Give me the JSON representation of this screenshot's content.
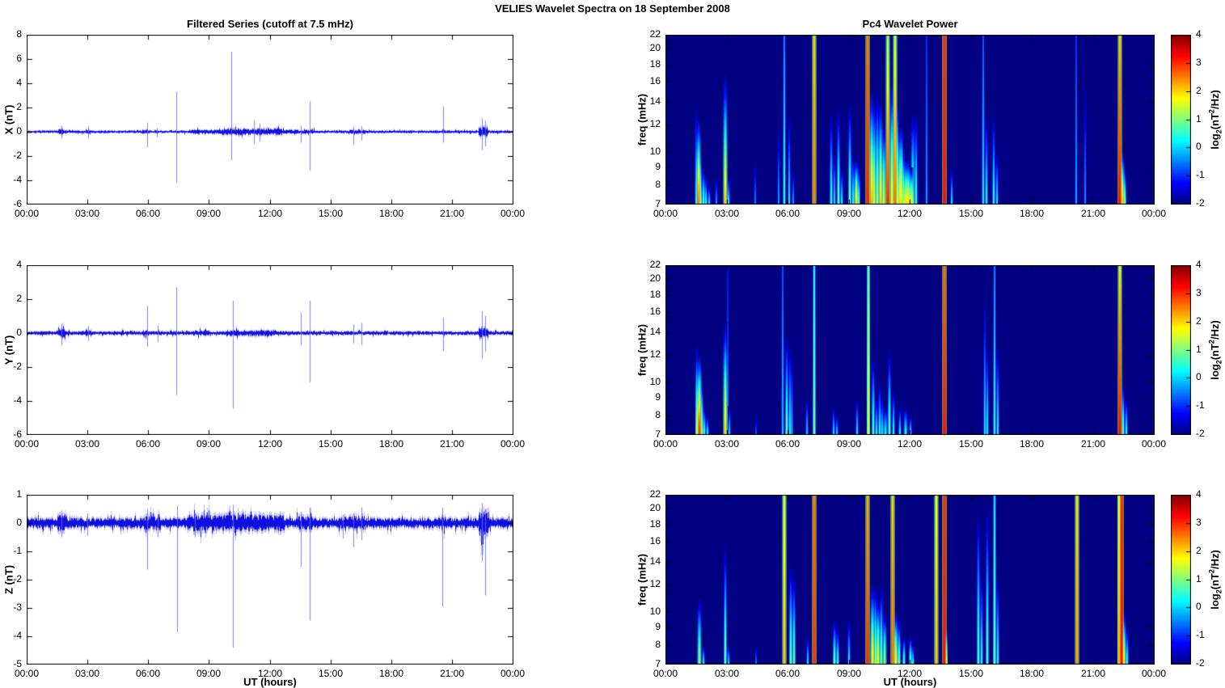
{
  "figure": {
    "title": "VELIES Wavelet Spectra on 18 September 2008"
  },
  "left_column": {
    "title": "Filtered Series (cutoff at 7.5 mHz)",
    "xlabel": "UT (hours)"
  },
  "right_column": {
    "title": "Pc4 Wavelet Power",
    "xlabel": "UT (hours)",
    "ylabel": "freq (mHz)"
  },
  "xaxis": {
    "tick_hours": [
      0,
      3,
      6,
      9,
      12,
      15,
      18,
      21,
      24
    ],
    "tick_labels": [
      "00:00",
      "03:00",
      "06:00",
      "09:00",
      "12:00",
      "15:00",
      "18:00",
      "21:00",
      "00:00"
    ]
  },
  "colorbar": {
    "ticks": [
      4,
      3,
      2,
      1,
      0,
      -1,
      -2
    ],
    "range": [
      -2,
      4
    ],
    "label_text": "log2(nT^2/Hz)",
    "label_pre": "log",
    "label_sub": "2",
    "label_mid": "(nT",
    "label_sup": "2",
    "label_post": "/Hz)"
  },
  "colors": {
    "line": "#0f0fe0",
    "spike": "#6a6afa",
    "wisp": "#7878f5",
    "background": "#ffffff",
    "heatmap_min": "#000080",
    "frame": "#000000"
  },
  "chart_data": [
    {
      "id": "series-x",
      "type": "line",
      "ylabel": "X (nT)",
      "ylim": [
        -6,
        8
      ],
      "yticks": [
        8,
        6,
        4,
        2,
        0,
        -2,
        -4,
        -6
      ],
      "x_range_hours": [
        0,
        24
      ],
      "noise_base": 0.08,
      "noise_segments": [
        [
          1.55,
          1.85,
          0.18
        ],
        [
          2.9,
          3.15,
          0.14
        ],
        [
          5.7,
          6.1,
          0.12
        ],
        [
          8.0,
          9.6,
          0.13
        ],
        [
          9.6,
          12.6,
          0.2
        ],
        [
          12.6,
          14.2,
          0.12
        ],
        [
          15.9,
          16.7,
          0.12
        ],
        [
          22.3,
          22.75,
          0.3
        ]
      ],
      "spikes": [
        {
          "t": 1.72,
          "hi": 0.5,
          "lo": -0.55
        },
        {
          "t": 3.02,
          "hi": 0.45,
          "lo": -0.5
        },
        {
          "t": 5.93,
          "hi": 0.75,
          "lo": -1.3
        },
        {
          "t": 6.4,
          "hi": 0.3,
          "lo": -0.45
        },
        {
          "t": 7.38,
          "hi": 3.3,
          "lo": -4.2
        },
        {
          "t": 10.08,
          "hi": 6.6,
          "lo": -2.35
        },
        {
          "t": 11.2,
          "hi": 0.95,
          "lo": -1.0
        },
        {
          "t": 11.5,
          "hi": 0.7,
          "lo": -0.8
        },
        {
          "t": 13.5,
          "hi": 0.5,
          "lo": -0.9
        },
        {
          "t": 13.95,
          "hi": 2.5,
          "lo": -3.2
        },
        {
          "t": 16.1,
          "hi": 0.4,
          "lo": -1.05
        },
        {
          "t": 16.5,
          "hi": 0.45,
          "lo": -0.7
        },
        {
          "t": 20.55,
          "hi": 2.1,
          "lo": -0.9
        },
        {
          "t": 22.45,
          "hi": 1.1,
          "lo": -1.5
        },
        {
          "t": 22.6,
          "hi": 0.9,
          "lo": -1.2
        }
      ]
    },
    {
      "id": "series-y",
      "type": "line",
      "ylabel": "Y (nT)",
      "ylim": [
        -6,
        4
      ],
      "yticks": [
        4,
        2,
        0,
        -2,
        -4,
        -6
      ],
      "x_range_hours": [
        0,
        24
      ],
      "noise_base": 0.08,
      "noise_segments": [
        [
          1.55,
          1.9,
          0.22
        ],
        [
          2.9,
          3.2,
          0.15
        ],
        [
          5.7,
          6.0,
          0.13
        ],
        [
          8.2,
          9.0,
          0.12
        ],
        [
          9.9,
          12.3,
          0.13
        ],
        [
          22.3,
          22.75,
          0.25
        ]
      ],
      "spikes": [
        {
          "t": 1.7,
          "hi": 0.55,
          "lo": -0.7
        },
        {
          "t": 3.02,
          "hi": 0.4,
          "lo": -0.45
        },
        {
          "t": 5.93,
          "hi": 1.6,
          "lo": -0.8
        },
        {
          "t": 6.45,
          "hi": 0.45,
          "lo": -0.55
        },
        {
          "t": 7.38,
          "hi": 2.7,
          "lo": -3.65
        },
        {
          "t": 10.15,
          "hi": 1.9,
          "lo": -4.45
        },
        {
          "t": 13.5,
          "hi": 1.2,
          "lo": -0.7
        },
        {
          "t": 13.95,
          "hi": 1.9,
          "lo": -2.9
        },
        {
          "t": 16.1,
          "hi": 0.5,
          "lo": -0.6
        },
        {
          "t": 16.5,
          "hi": 0.6,
          "lo": -0.7
        },
        {
          "t": 20.55,
          "hi": 0.9,
          "lo": -1.05
        },
        {
          "t": 22.45,
          "hi": 1.3,
          "lo": -1.5
        },
        {
          "t": 22.6,
          "hi": 1.0,
          "lo": -1.1
        }
      ]
    },
    {
      "id": "series-z",
      "type": "line",
      "ylabel": "Z (nT)",
      "ylim": [
        -5,
        1
      ],
      "yticks": [
        1,
        0,
        -1,
        -2,
        -3,
        -4,
        -5
      ],
      "x_range_hours": [
        0,
        24
      ],
      "noise_base": 0.13,
      "noise_segments": [
        [
          1.5,
          2.0,
          0.22
        ],
        [
          5.8,
          6.6,
          0.18
        ],
        [
          7.9,
          12.7,
          0.22
        ],
        [
          13.3,
          14.1,
          0.18
        ],
        [
          15.5,
          16.7,
          0.18
        ],
        [
          20.3,
          20.7,
          0.18
        ],
        [
          22.3,
          22.8,
          0.35
        ]
      ],
      "spikes": [
        {
          "t": 1.7,
          "hi": 0.45,
          "lo": -0.5
        },
        {
          "t": 3.0,
          "hi": 0.35,
          "lo": -0.45
        },
        {
          "t": 5.95,
          "hi": 0.5,
          "lo": -1.65
        },
        {
          "t": 6.45,
          "hi": 0.3,
          "lo": -0.5
        },
        {
          "t": 7.4,
          "hi": 0.6,
          "lo": -3.85
        },
        {
          "t": 8.3,
          "hi": 0.35,
          "lo": -0.5
        },
        {
          "t": 10.15,
          "hi": 0.65,
          "lo": -4.4
        },
        {
          "t": 13.5,
          "hi": 0.4,
          "lo": -1.55
        },
        {
          "t": 13.95,
          "hi": 0.55,
          "lo": -3.45
        },
        {
          "t": 15.6,
          "hi": 0.3,
          "lo": -0.55
        },
        {
          "t": 16.1,
          "hi": 0.35,
          "lo": -0.85
        },
        {
          "t": 16.5,
          "hi": 0.55,
          "lo": -0.6
        },
        {
          "t": 20.5,
          "hi": 0.55,
          "lo": -2.95
        },
        {
          "t": 22.45,
          "hi": 0.7,
          "lo": -1.35
        },
        {
          "t": 22.6,
          "hi": 0.5,
          "lo": -2.55
        }
      ]
    },
    {
      "id": "wavelet-x",
      "type": "heatmap",
      "ylabel": "freq (mHz)",
      "ylim": [
        7,
        22
      ],
      "yscale": "log",
      "yticks": [
        7,
        8,
        9,
        10,
        12,
        14,
        16,
        18,
        20,
        22
      ],
      "clim": [
        -2,
        4
      ],
      "x_range_hours": [
        0,
        24
      ],
      "streaks": [
        [
          1.5,
          14,
          0.2,
          2
        ],
        [
          1.62,
          12.5,
          2.6,
          3
        ],
        [
          1.72,
          10,
          1.5,
          2
        ],
        [
          1.85,
          9,
          0.8,
          2
        ],
        [
          2.0,
          8.5,
          0.5,
          2
        ],
        [
          2.15,
          8,
          0.2,
          2
        ],
        [
          2.5,
          8.5,
          -0.3,
          2
        ],
        [
          2.95,
          17,
          2.0,
          3
        ],
        [
          3.1,
          8.5,
          0.3,
          2
        ],
        [
          4.4,
          9.5,
          -0.5,
          2
        ],
        [
          5.55,
          12,
          -0.3,
          2
        ],
        [
          5.85,
          22,
          0.6,
          2,
          -0.5
        ],
        [
          6.05,
          13,
          0.2,
          2
        ],
        [
          6.25,
          9,
          -0.3,
          2
        ],
        [
          7.3,
          22,
          2.5,
          3,
          2.0
        ],
        [
          8.15,
          13,
          0.6,
          2
        ],
        [
          8.3,
          10,
          0.2,
          2
        ],
        [
          8.5,
          13.5,
          0.9,
          2
        ],
        [
          8.65,
          9,
          0.3,
          2
        ],
        [
          9.05,
          14,
          1.0,
          2
        ],
        [
          9.2,
          10,
          0.4,
          2
        ],
        [
          9.35,
          9.5,
          2.0,
          3
        ],
        [
          9.5,
          9,
          0.8,
          2
        ],
        [
          9.93,
          22,
          3.1,
          3,
          2.5
        ],
        [
          10.1,
          15,
          2.2,
          3
        ],
        [
          10.25,
          14,
          1.8,
          3
        ],
        [
          10.4,
          15,
          1.2,
          2
        ],
        [
          10.55,
          14,
          2.0,
          3
        ],
        [
          10.7,
          12,
          1.5,
          3
        ],
        [
          10.9,
          22,
          3.0,
          3,
          1.2
        ],
        [
          11.1,
          16,
          1.8,
          3
        ],
        [
          11.25,
          22,
          2.6,
          3,
          1.5
        ],
        [
          11.4,
          14,
          1.6,
          3
        ],
        [
          11.55,
          12,
          2.0,
          4
        ],
        [
          11.7,
          10,
          1.8,
          4
        ],
        [
          11.85,
          9.5,
          2.0,
          5
        ],
        [
          12.0,
          9,
          1.9,
          5
        ],
        [
          12.15,
          13,
          1.0,
          3
        ],
        [
          12.3,
          13,
          0.6,
          2
        ],
        [
          12.8,
          22,
          -0.3,
          2,
          -1
        ],
        [
          13.67,
          22,
          3.2,
          3,
          3.0
        ],
        [
          14.05,
          9,
          0.2,
          2
        ],
        [
          15.6,
          22,
          0.3,
          2,
          -0.8
        ],
        [
          15.75,
          13,
          0.4,
          2
        ],
        [
          16.1,
          13,
          0.5,
          2
        ],
        [
          16.25,
          10,
          0.2,
          2
        ],
        [
          20.15,
          22,
          -0.2,
          2,
          -1
        ],
        [
          20.6,
          16,
          -0.4,
          2
        ],
        [
          22.3,
          22,
          3.2,
          3,
          2.0
        ],
        [
          22.42,
          10,
          2.2,
          3
        ],
        [
          22.55,
          9,
          1.0,
          2
        ]
      ]
    },
    {
      "id": "wavelet-y",
      "type": "heatmap",
      "ylabel": "freq (mHz)",
      "ylim": [
        7,
        22
      ],
      "yscale": "log",
      "yticks": [
        7,
        8,
        9,
        10,
        12,
        14,
        16,
        18,
        20,
        22
      ],
      "clim": [
        -2,
        4
      ],
      "x_range_hours": [
        0,
        24
      ],
      "streaks": [
        [
          1.55,
          13,
          1.5,
          2
        ],
        [
          1.65,
          12,
          3.0,
          3
        ],
        [
          1.78,
          10,
          1.2,
          2
        ],
        [
          1.9,
          8.5,
          0.6,
          2
        ],
        [
          2.05,
          8,
          0.3,
          2
        ],
        [
          2.95,
          15,
          2.0,
          3
        ],
        [
          3.05,
          22,
          -0.5,
          2,
          -1.2
        ],
        [
          3.15,
          8.5,
          0.2,
          2
        ],
        [
          4.45,
          8,
          -0.7,
          2
        ],
        [
          5.75,
          22,
          0.0,
          2,
          -0.8
        ],
        [
          5.95,
          14,
          0.9,
          2
        ],
        [
          6.1,
          13,
          0.4,
          2
        ],
        [
          6.2,
          12,
          0.3,
          2
        ],
        [
          6.95,
          9,
          0.1,
          2
        ],
        [
          7.3,
          22,
          1.0,
          2,
          0.4
        ],
        [
          8.25,
          8.5,
          0.2,
          2
        ],
        [
          8.4,
          8,
          0.1,
          2
        ],
        [
          9.4,
          9,
          0.2,
          2
        ],
        [
          9.95,
          22,
          1.8,
          2,
          1.0
        ],
        [
          10.2,
          12,
          0.8,
          2
        ],
        [
          10.35,
          9,
          0.4,
          2
        ],
        [
          10.5,
          10,
          0.5,
          2
        ],
        [
          10.65,
          9,
          0.3,
          3
        ],
        [
          10.8,
          8.5,
          0.4,
          3
        ],
        [
          11.0,
          12.5,
          0.9,
          2
        ],
        [
          11.2,
          9.5,
          0.4,
          2
        ],
        [
          11.5,
          8.5,
          0.3,
          2
        ],
        [
          11.8,
          8.5,
          0.4,
          3
        ],
        [
          12.0,
          8,
          0.3,
          2
        ],
        [
          13.67,
          22,
          3.2,
          3,
          2.6
        ],
        [
          15.65,
          18,
          0.2,
          2
        ],
        [
          15.8,
          13,
          0.3,
          2
        ],
        [
          16.15,
          22,
          0.5,
          2,
          -0.5
        ],
        [
          16.3,
          13,
          0.3,
          2
        ],
        [
          22.3,
          22,
          3.2,
          3,
          1.8
        ],
        [
          22.45,
          10,
          0.8,
          2
        ],
        [
          22.6,
          9,
          0.4,
          2
        ]
      ]
    },
    {
      "id": "wavelet-z",
      "type": "heatmap",
      "ylabel": "freq (mHz)",
      "ylim": [
        7,
        22
      ],
      "yscale": "log",
      "yticks": [
        7,
        8,
        9,
        10,
        12,
        14,
        16,
        18,
        20,
        22
      ],
      "clim": [
        -2,
        4
      ],
      "x_range_hours": [
        0,
        24
      ],
      "streaks": [
        [
          1.68,
          11,
          1.2,
          3
        ],
        [
          1.85,
          8,
          0.4,
          2
        ],
        [
          2.95,
          16,
          0.9,
          2
        ],
        [
          3.1,
          8,
          0.2,
          2
        ],
        [
          4.45,
          8,
          -0.5,
          2
        ],
        [
          5.85,
          22,
          2.1,
          3,
          1.6
        ],
        [
          6.15,
          14,
          1.0,
          2
        ],
        [
          6.3,
          13,
          0.9,
          2
        ],
        [
          7.0,
          8.5,
          0.2,
          2
        ],
        [
          7.3,
          22,
          3.0,
          3,
          2.5
        ],
        [
          8.3,
          9.5,
          1.0,
          2
        ],
        [
          8.45,
          9,
          0.6,
          2
        ],
        [
          9.0,
          9.5,
          0.3,
          2
        ],
        [
          9.93,
          22,
          3.0,
          3,
          2.2
        ],
        [
          10.15,
          12,
          1.9,
          3
        ],
        [
          10.3,
          12,
          1.4,
          3
        ],
        [
          10.45,
          11,
          1.7,
          3
        ],
        [
          10.6,
          12,
          1.0,
          2
        ],
        [
          10.75,
          10,
          1.2,
          3
        ],
        [
          11.15,
          22,
          2.6,
          3,
          2.0
        ],
        [
          11.3,
          10,
          1.8,
          3
        ],
        [
          11.45,
          9.5,
          1.0,
          2
        ],
        [
          11.7,
          8.5,
          0.8,
          2
        ],
        [
          12.0,
          8.5,
          1.0,
          2
        ],
        [
          12.15,
          8,
          0.5,
          2
        ],
        [
          13.3,
          22,
          2.1,
          3,
          1.7
        ],
        [
          13.67,
          22,
          3.2,
          3,
          3.0
        ],
        [
          13.78,
          9,
          1.9,
          2
        ],
        [
          15.35,
          20,
          0.8,
          2
        ],
        [
          15.5,
          13,
          0.4,
          2
        ],
        [
          15.8,
          21,
          0.8,
          2
        ],
        [
          16.15,
          22,
          1.0,
          2,
          0.2
        ],
        [
          16.3,
          13,
          0.4,
          2
        ],
        [
          20.2,
          22,
          2.3,
          3,
          1.9
        ],
        [
          22.25,
          22,
          2.4,
          2,
          1.8
        ],
        [
          22.38,
          22,
          3.2,
          3,
          3.0
        ],
        [
          22.5,
          10,
          1.9,
          3
        ],
        [
          22.65,
          9,
          0.5,
          2
        ]
      ]
    }
  ]
}
